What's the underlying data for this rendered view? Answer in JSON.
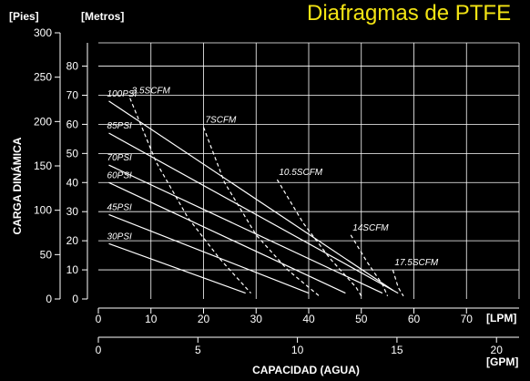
{
  "page": {
    "heading": "Diafragmas de PTFE",
    "unit_feet": "[Pies]",
    "unit_meters": "[Metros]",
    "unit_lpm": "[LPM]",
    "unit_gpm": "[GPM]",
    "ylabel": "CARGA DINÁMICA",
    "xlabel": "CAPACIDAD (AGUA)"
  },
  "colors": {
    "background": "#000000",
    "lines": "#ffffff",
    "heading": "#f3e414"
  },
  "chart_data": {
    "type": "line",
    "title": "Diafragmas de PTFE",
    "xlabel": "CAPACIDAD (AGUA)",
    "ylabel": "CARGA DINÁMICA",
    "x_unit": "LPM",
    "y_unit": "Metros",
    "xlim": [
      0,
      80
    ],
    "ylim": [
      0,
      88
    ],
    "x_ticks": [
      0,
      10,
      20,
      30,
      40,
      50,
      60,
      70
    ],
    "y_ticks": [
      0,
      10,
      20,
      30,
      40,
      50,
      60,
      70,
      80
    ],
    "secondary_x": {
      "unit": "GPM",
      "ticks": [
        0,
        5,
        10,
        15,
        20
      ]
    },
    "secondary_y": {
      "unit": "Pies",
      "ticks": [
        0,
        50,
        100,
        150,
        200,
        250,
        300
      ]
    },
    "grid": true,
    "pressure_curves": [
      {
        "name": "100PSI",
        "points": [
          [
            2,
            68
          ],
          [
            56,
            3
          ]
        ]
      },
      {
        "name": "85PSI",
        "points": [
          [
            2,
            57
          ],
          [
            57,
            2
          ]
        ]
      },
      {
        "name": "70PSI",
        "points": [
          [
            2,
            46
          ],
          [
            54,
            2
          ]
        ]
      },
      {
        "name": "60PSI",
        "points": [
          [
            2,
            40
          ],
          [
            47,
            2
          ]
        ]
      },
      {
        "name": "45PSI",
        "points": [
          [
            2,
            29
          ],
          [
            40,
            2
          ]
        ]
      },
      {
        "name": "30PSI",
        "points": [
          [
            2,
            19
          ],
          [
            28,
            2
          ]
        ]
      }
    ],
    "air_consumption_curves": [
      {
        "name": "3.5SCFM",
        "points": [
          [
            6,
            69
          ],
          [
            11,
            47
          ],
          [
            17,
            28
          ],
          [
            23,
            14
          ],
          [
            29,
            2
          ]
        ]
      },
      {
        "name": "7SCFM",
        "points": [
          [
            20,
            59
          ],
          [
            24,
            40
          ],
          [
            30,
            22
          ],
          [
            36,
            10
          ],
          [
            42,
            1
          ]
        ]
      },
      {
        "name": "10.5SCFM",
        "points": [
          [
            34,
            41
          ],
          [
            39,
            26
          ],
          [
            44,
            14
          ],
          [
            49,
            4
          ],
          [
            50,
            1
          ]
        ]
      },
      {
        "name": "14SCFM",
        "points": [
          [
            48,
            22
          ],
          [
            51,
            13
          ],
          [
            54,
            5
          ],
          [
            55,
            1
          ]
        ]
      },
      {
        "name": "17.5SCFM",
        "points": [
          [
            56,
            10
          ],
          [
            57,
            4
          ],
          [
            58,
            1
          ]
        ]
      }
    ]
  }
}
